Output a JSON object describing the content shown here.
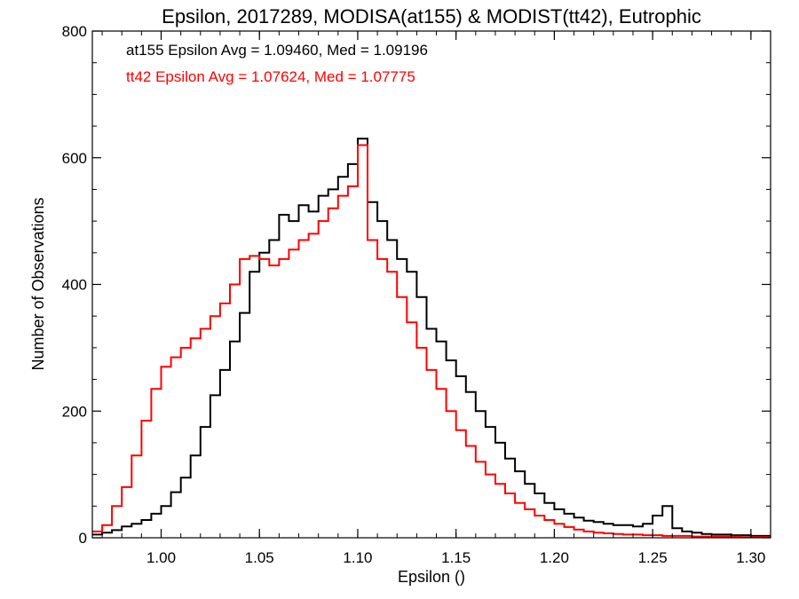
{
  "chart_data": {
    "type": "line",
    "title": "Epsilon, 2017289, MODISA(at155) & MODIST(tt42), Eutrophic",
    "xlabel": "Epsilon ()",
    "ylabel": "Number of Observations",
    "xlim": [
      0.965,
      1.31
    ],
    "ylim": [
      0,
      800
    ],
    "x_ticks": [
      1.0,
      1.05,
      1.1,
      1.15,
      1.2,
      1.25,
      1.3
    ],
    "x_tick_labels": [
      "1.00",
      "1.05",
      "1.10",
      "1.15",
      "1.20",
      "1.25",
      "1.30"
    ],
    "y_ticks": [
      0,
      200,
      400,
      600,
      800
    ],
    "y_tick_labels": [
      "0",
      "200",
      "400",
      "600",
      "800"
    ],
    "grid": false,
    "legend_position": "top-left",
    "annotations": [
      {
        "text": "at155 Epsilon Avg = 1.09460, Med = 1.09196",
        "color": "#000000"
      },
      {
        "text": "tt42 Epsilon Avg = 1.07624, Med = 1.07775",
        "color": "#ff0000"
      }
    ],
    "step_style": "histogram",
    "series": [
      {
        "color": "#000000",
        "points": [
          [
            0.965,
            5
          ],
          [
            0.97,
            8
          ],
          [
            0.975,
            12
          ],
          [
            0.98,
            18
          ],
          [
            0.985,
            22
          ],
          [
            0.99,
            28
          ],
          [
            0.995,
            38
          ],
          [
            1.0,
            50
          ],
          [
            1.005,
            72
          ],
          [
            1.01,
            95
          ],
          [
            1.015,
            130
          ],
          [
            1.02,
            175
          ],
          [
            1.025,
            225
          ],
          [
            1.03,
            265
          ],
          [
            1.035,
            310
          ],
          [
            1.04,
            355
          ],
          [
            1.045,
            420
          ],
          [
            1.05,
            450
          ],
          [
            1.055,
            470
          ],
          [
            1.06,
            510
          ],
          [
            1.065,
            500
          ],
          [
            1.07,
            525
          ],
          [
            1.075,
            515
          ],
          [
            1.08,
            540
          ],
          [
            1.085,
            550
          ],
          [
            1.09,
            570
          ],
          [
            1.095,
            590
          ],
          [
            1.1,
            630
          ],
          [
            1.105,
            530
          ],
          [
            1.11,
            500
          ],
          [
            1.115,
            470
          ],
          [
            1.12,
            440
          ],
          [
            1.125,
            420
          ],
          [
            1.13,
            380
          ],
          [
            1.135,
            330
          ],
          [
            1.14,
            310
          ],
          [
            1.145,
            280
          ],
          [
            1.15,
            255
          ],
          [
            1.155,
            230
          ],
          [
            1.16,
            200
          ],
          [
            1.165,
            175
          ],
          [
            1.17,
            150
          ],
          [
            1.175,
            125
          ],
          [
            1.18,
            105
          ],
          [
            1.185,
            85
          ],
          [
            1.19,
            70
          ],
          [
            1.195,
            55
          ],
          [
            1.2,
            45
          ],
          [
            1.205,
            38
          ],
          [
            1.21,
            32
          ],
          [
            1.215,
            27
          ],
          [
            1.22,
            25
          ],
          [
            1.225,
            22
          ],
          [
            1.23,
            20
          ],
          [
            1.235,
            20
          ],
          [
            1.24,
            18
          ],
          [
            1.245,
            22
          ],
          [
            1.25,
            35
          ],
          [
            1.255,
            50
          ],
          [
            1.26,
            15
          ],
          [
            1.265,
            10
          ],
          [
            1.27,
            8
          ],
          [
            1.275,
            6
          ],
          [
            1.28,
            5
          ],
          [
            1.285,
            5
          ],
          [
            1.29,
            4
          ],
          [
            1.295,
            4
          ],
          [
            1.3,
            3
          ],
          [
            1.305,
            3
          ]
        ]
      },
      {
        "color": "#ff0000",
        "points": [
          [
            0.965,
            10
          ],
          [
            0.97,
            20
          ],
          [
            0.975,
            50
          ],
          [
            0.98,
            80
          ],
          [
            0.985,
            130
          ],
          [
            0.99,
            185
          ],
          [
            0.995,
            235
          ],
          [
            1.0,
            270
          ],
          [
            1.005,
            285
          ],
          [
            1.01,
            300
          ],
          [
            1.015,
            315
          ],
          [
            1.02,
            330
          ],
          [
            1.025,
            350
          ],
          [
            1.03,
            370
          ],
          [
            1.035,
            400
          ],
          [
            1.04,
            440
          ],
          [
            1.045,
            445
          ],
          [
            1.05,
            440
          ],
          [
            1.055,
            430
          ],
          [
            1.06,
            440
          ],
          [
            1.065,
            455
          ],
          [
            1.07,
            470
          ],
          [
            1.075,
            480
          ],
          [
            1.08,
            500
          ],
          [
            1.085,
            520
          ],
          [
            1.09,
            540
          ],
          [
            1.095,
            555
          ],
          [
            1.1,
            620
          ],
          [
            1.105,
            470
          ],
          [
            1.11,
            440
          ],
          [
            1.115,
            420
          ],
          [
            1.12,
            380
          ],
          [
            1.125,
            340
          ],
          [
            1.13,
            300
          ],
          [
            1.135,
            265
          ],
          [
            1.14,
            235
          ],
          [
            1.145,
            200
          ],
          [
            1.15,
            170
          ],
          [
            1.155,
            145
          ],
          [
            1.16,
            120
          ],
          [
            1.165,
            100
          ],
          [
            1.17,
            85
          ],
          [
            1.175,
            70
          ],
          [
            1.18,
            55
          ],
          [
            1.185,
            45
          ],
          [
            1.19,
            35
          ],
          [
            1.195,
            28
          ],
          [
            1.2,
            22
          ],
          [
            1.205,
            17
          ],
          [
            1.21,
            13
          ],
          [
            1.215,
            10
          ],
          [
            1.22,
            8
          ],
          [
            1.225,
            7
          ],
          [
            1.23,
            6
          ],
          [
            1.235,
            5
          ],
          [
            1.24,
            5
          ],
          [
            1.245,
            4
          ],
          [
            1.25,
            4
          ],
          [
            1.255,
            3
          ],
          [
            1.26,
            3
          ],
          [
            1.265,
            3
          ],
          [
            1.27,
            2
          ],
          [
            1.275,
            2
          ],
          [
            1.28,
            2
          ],
          [
            1.285,
            2
          ],
          [
            1.29,
            2
          ],
          [
            1.295,
            1
          ],
          [
            1.3,
            1
          ],
          [
            1.305,
            1
          ]
        ]
      }
    ]
  }
}
